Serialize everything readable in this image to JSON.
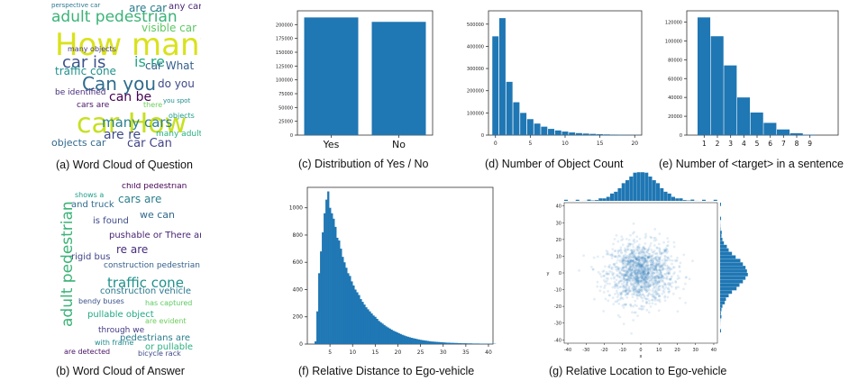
{
  "captions": {
    "a": "(a) Word Cloud of Question",
    "b": "(b) Word Cloud of Answer",
    "c": "(c) Distribution of Yes / No",
    "d": "(d) Number of Object Count",
    "e": "(e) Number of <target> in a sentence",
    "f": "(f) Relative Distance to Ego-vehicle",
    "g": "(g) Relative Location to Ego-vehicle"
  },
  "colors": {
    "bar": "#1f77b4",
    "axis": "#333333"
  },
  "wordcloud_question": [
    {
      "t": "How many",
      "s": 34,
      "c": "#d9e21c",
      "x": 4,
      "y": 30
    },
    {
      "t": "car How",
      "s": 30,
      "c": "#c7e020",
      "x": 28,
      "y": 120
    },
    {
      "t": "adult pedestrian",
      "s": 17,
      "c": "#3bb377",
      "x": 0,
      "y": 8
    },
    {
      "t": "Can you",
      "s": 20,
      "c": "#2f6b8e",
      "x": 34,
      "y": 80
    },
    {
      "t": "car is",
      "s": 18,
      "c": "#3b528b",
      "x": 12,
      "y": 58
    },
    {
      "t": "is re",
      "s": 16,
      "c": "#22a884",
      "x": 92,
      "y": 58
    },
    {
      "t": "visible car",
      "s": 12,
      "c": "#5ec962",
      "x": 100,
      "y": 22
    },
    {
      "t": "many cars",
      "s": 15,
      "c": "#2c7f8e",
      "x": 56,
      "y": 126
    },
    {
      "t": "are re",
      "s": 14,
      "c": "#3e4a89",
      "x": 58,
      "y": 140
    },
    {
      "t": "car What",
      "s": 12,
      "c": "#35608d",
      "x": 104,
      "y": 64
    },
    {
      "t": "can be",
      "s": 14,
      "c": "#440154",
      "x": 64,
      "y": 98
    },
    {
      "t": "objects car",
      "s": 11,
      "c": "#31688e",
      "x": 0,
      "y": 150
    },
    {
      "t": "car Can",
      "s": 13,
      "c": "#414487",
      "x": 84,
      "y": 150
    },
    {
      "t": "traffic cone",
      "s": 12,
      "c": "#21918c",
      "x": 4,
      "y": 70
    },
    {
      "t": "be identified",
      "s": 9,
      "c": "#472d7b",
      "x": 4,
      "y": 96
    },
    {
      "t": "perspective car",
      "s": 7,
      "c": "#2a788e",
      "x": 0,
      "y": 0
    },
    {
      "t": "are car",
      "s": 12,
      "c": "#287d8e",
      "x": 86,
      "y": 0
    },
    {
      "t": "any car",
      "s": 10,
      "c": "#482475",
      "x": 130,
      "y": 0
    },
    {
      "t": "do you",
      "s": 12,
      "c": "#3e4989",
      "x": 118,
      "y": 84
    },
    {
      "t": "many adult",
      "s": 9,
      "c": "#2ab07f",
      "x": 116,
      "y": 142
    },
    {
      "t": "many objects",
      "s": 8,
      "c": "#443a83",
      "x": 18,
      "y": 48
    },
    {
      "t": "cars are",
      "s": 9,
      "c": "#471365",
      "x": 28,
      "y": 110
    },
    {
      "t": "you spot",
      "s": 7,
      "c": "#228c8d",
      "x": 124,
      "y": 106
    },
    {
      "t": "there",
      "s": 8,
      "c": "#6ccd5a",
      "x": 102,
      "y": 110
    },
    {
      "t": "objects",
      "s": 8,
      "c": "#1f9e89",
      "x": 130,
      "y": 122
    }
  ],
  "wordcloud_answer": [
    {
      "t": "adult pedestrian",
      "s": 17,
      "c": "#3bb377",
      "x": 10,
      "y": 160,
      "r": -90
    },
    {
      "t": "traffic cone",
      "s": 15,
      "c": "#21918c",
      "x": 62,
      "y": 104
    },
    {
      "t": "child pedestrian",
      "s": 9,
      "c": "#440154",
      "x": 78,
      "y": 0
    },
    {
      "t": "cars are",
      "s": 12,
      "c": "#2c7f8e",
      "x": 74,
      "y": 12
    },
    {
      "t": "we can",
      "s": 11,
      "c": "#31688e",
      "x": 98,
      "y": 30
    },
    {
      "t": "is found",
      "s": 10,
      "c": "#3e4a89",
      "x": 46,
      "y": 38
    },
    {
      "t": "pushable or There are",
      "s": 10,
      "c": "#482475",
      "x": 64,
      "y": 54
    },
    {
      "t": "re are",
      "s": 12,
      "c": "#472d7b",
      "x": 72,
      "y": 68
    },
    {
      "t": "rigid bus",
      "s": 10,
      "c": "#414487",
      "x": 22,
      "y": 78
    },
    {
      "t": "construction pedestrian",
      "s": 9,
      "c": "#35608d",
      "x": 58,
      "y": 88
    },
    {
      "t": "construction vehicle",
      "s": 10,
      "c": "#2a788e",
      "x": 54,
      "y": 116
    },
    {
      "t": "bendy buses",
      "s": 8,
      "c": "#3b528b",
      "x": 30,
      "y": 128
    },
    {
      "t": "pullable object",
      "s": 10,
      "c": "#22a884",
      "x": 40,
      "y": 142
    },
    {
      "t": "through we",
      "s": 9,
      "c": "#443a83",
      "x": 52,
      "y": 160
    },
    {
      "t": "pedestrians are",
      "s": 10,
      "c": "#287d8e",
      "x": 76,
      "y": 168
    },
    {
      "t": "or pullable",
      "s": 10,
      "c": "#2ab07f",
      "x": 104,
      "y": 178
    },
    {
      "t": "are detected",
      "s": 8,
      "c": "#471365",
      "x": 14,
      "y": 184
    },
    {
      "t": "bicycle rack",
      "s": 8,
      "c": "#3e4989",
      "x": 96,
      "y": 186
    },
    {
      "t": "and truck",
      "s": 10,
      "c": "#2f6b8e",
      "x": 22,
      "y": 20
    },
    {
      "t": "shows a",
      "s": 8,
      "c": "#1f9e89",
      "x": 26,
      "y": 10
    },
    {
      "t": "has captured",
      "s": 8,
      "c": "#5ec962",
      "x": 104,
      "y": 130
    },
    {
      "t": "with frame",
      "s": 8,
      "c": "#228c8d",
      "x": 48,
      "y": 174
    },
    {
      "t": "are evident",
      "s": 8,
      "c": "#6ccd5a",
      "x": 104,
      "y": 150
    }
  ],
  "chart_data": [
    {
      "id": "c",
      "type": "bar",
      "categories": [
        "Yes",
        "No"
      ],
      "values": [
        213000,
        205000
      ],
      "ylim": [
        0,
        225000
      ],
      "yticks": [
        0,
        25000,
        50000,
        75000,
        100000,
        125000,
        150000,
        175000,
        200000
      ],
      "title": "",
      "xlabel": "",
      "ylabel": ""
    },
    {
      "id": "d",
      "type": "bar",
      "x": [
        0,
        1,
        2,
        3,
        4,
        5,
        6,
        7,
        8,
        9,
        10,
        11,
        12,
        13,
        14,
        15,
        16,
        17,
        18,
        19,
        20
      ],
      "values": [
        445000,
        527000,
        240000,
        148000,
        100000,
        72000,
        52000,
        38000,
        28000,
        21000,
        16000,
        12000,
        9000,
        7000,
        5500,
        4000,
        3000,
        2300,
        1800,
        1300,
        1000
      ],
      "xlim": [
        -1,
        21
      ],
      "ylim": [
        0,
        560000
      ],
      "xticks": [
        0,
        5,
        10,
        15,
        20
      ],
      "yticks": [
        0,
        100000,
        200000,
        300000,
        400000,
        500000
      ],
      "title": "",
      "xlabel": "",
      "ylabel": ""
    },
    {
      "id": "e",
      "type": "bar",
      "categories": [
        "1",
        "2",
        "3",
        "4",
        "5",
        "6",
        "7",
        "8",
        "9"
      ],
      "values": [
        125000,
        105000,
        74000,
        40000,
        24000,
        13000,
        6000,
        2000,
        500
      ],
      "ylim": [
        0,
        132000
      ],
      "yticks": [
        0,
        20000,
        40000,
        60000,
        80000,
        100000,
        120000
      ],
      "title": "",
      "xlabel": "",
      "ylabel": ""
    },
    {
      "id": "f",
      "type": "bar",
      "bin_width": 0.4,
      "x_start": 1.6,
      "values": [
        20,
        240,
        520,
        680,
        820,
        960,
        1060,
        1120,
        1000,
        960,
        920,
        860,
        780,
        760,
        700,
        640,
        600,
        560,
        520,
        500,
        460,
        430,
        400,
        380,
        360,
        330,
        310,
        290,
        270,
        255,
        240,
        225,
        210,
        200,
        185,
        170,
        160,
        150,
        140,
        130,
        122,
        114,
        106,
        98,
        92,
        86,
        80,
        74,
        68,
        63,
        58,
        54,
        50,
        46,
        43,
        40,
        37,
        34,
        31,
        29,
        27,
        25,
        23,
        21,
        19,
        18,
        17,
        16,
        15,
        14,
        13,
        12,
        11,
        10,
        10,
        9,
        9,
        8,
        8,
        7,
        7,
        6,
        6,
        6,
        5,
        5,
        5,
        4,
        4,
        4,
        4,
        3,
        3,
        3,
        3,
        3,
        2,
        2,
        2,
        2
      ],
      "xlim": [
        0,
        41
      ],
      "ylim": [
        0,
        1150
      ],
      "xticks": [
        5,
        10,
        15,
        20,
        25,
        30,
        35,
        40
      ],
      "yticks": [
        0,
        200,
        400,
        600,
        800,
        1000
      ],
      "title": "",
      "xlabel": "",
      "ylabel": ""
    },
    {
      "id": "g",
      "type": "scatter",
      "xlim": [
        -42,
        42
      ],
      "ylim": [
        -42,
        42
      ],
      "xticks": [
        -40,
        -30,
        -20,
        -10,
        0,
        10,
        20,
        30,
        40
      ],
      "yticks": [
        -40,
        -30,
        -20,
        -10,
        0,
        10,
        20,
        30,
        40
      ],
      "xlabel": "x",
      "ylabel": "y",
      "distribution": "approximately centered at (0, 0), spread about 10 units",
      "title": ""
    }
  ]
}
